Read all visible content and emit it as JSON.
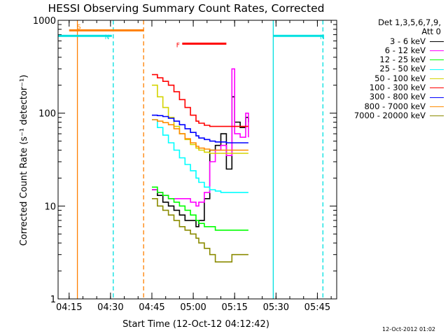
{
  "chart_data": {
    "type": "line",
    "title": "HESSI Observing Summary Count Rates, Corrected",
    "xlabel": "Start Time (12-Oct-12 04:12:42)",
    "ylabel": "Corrected Count Rate (s⁻¹ detector⁻¹)",
    "yscale": "log",
    "ylim": [
      1,
      1000
    ],
    "xlim": [
      "04:11:00",
      "05:52:00"
    ],
    "x_ticks": [
      "04:15",
      "04:30",
      "04:45",
      "05:00",
      "05:15",
      "05:30",
      "05:45"
    ],
    "y_ticks": [
      "1",
      "10",
      "100",
      "1000"
    ],
    "legend_header": [
      "Det 1,3,5,6,7,9,",
      "Att 0"
    ],
    "legend_position": "outside-right",
    "datestamp": "12-Oct-2012 01:02",
    "bars": [
      {
        "label": "S",
        "color": "#ff7f00",
        "level": 780,
        "start": "04:15:00",
        "end": "04:42:00"
      },
      {
        "label": "N",
        "color": "#00e0e0",
        "level": 680,
        "start": "04:11:00",
        "end": "04:30:30"
      },
      {
        "label": "N",
        "color": "#00e0e0",
        "level": 680,
        "start": "05:29:00",
        "end": "05:47:00"
      },
      {
        "label": "F",
        "color": "#ff0000",
        "level": 560,
        "start": "04:56:00",
        "end": "05:12:00"
      }
    ],
    "vlines": [
      {
        "t": "04:18:00",
        "color": "#ff7f00",
        "style": "solid"
      },
      {
        "t": "04:42:00",
        "color": "#ff7f00",
        "style": "dashed"
      },
      {
        "t": "04:31:00",
        "color": "#00e0e0",
        "style": "dashed"
      },
      {
        "t": "05:29:00",
        "color": "#00e0e0",
        "style": "solid"
      },
      {
        "t": "05:47:00",
        "color": "#00e0e0",
        "style": "dashed"
      }
    ],
    "series": [
      {
        "name": "3 - 6 keV",
        "color": "#000000",
        "x": [
          "04:45",
          "04:47",
          "04:49",
          "04:51",
          "04:53",
          "04:55",
          "04:57",
          "04:59",
          "05:01",
          "05:02",
          "05:04",
          "05:06",
          "05:08",
          "05:10",
          "05:12",
          "05:14",
          "05:15",
          "05:17",
          "05:19",
          "05:20"
        ],
        "y": [
          15,
          13,
          11,
          10,
          9,
          8,
          7,
          7,
          6,
          7,
          12,
          40,
          45,
          60,
          25,
          150,
          80,
          70,
          90,
          80
        ]
      },
      {
        "name": "6 - 12 keV",
        "color": "#ff00ff",
        "x": [
          "04:45",
          "04:47",
          "04:49",
          "04:51",
          "04:53",
          "04:55",
          "04:57",
          "04:59",
          "05:01",
          "05:02",
          "05:04",
          "05:06",
          "05:08",
          "05:10",
          "05:12",
          "05:14",
          "05:15",
          "05:17",
          "05:19",
          "05:20"
        ],
        "y": [
          15,
          14,
          13,
          12,
          12,
          12,
          12,
          11,
          10,
          11,
          14,
          30,
          40,
          45,
          35,
          300,
          60,
          55,
          100,
          55
        ]
      },
      {
        "name": "12 - 25 keV",
        "color": "#00ff00",
        "x": [
          "04:45",
          "04:47",
          "04:49",
          "04:51",
          "04:53",
          "04:55",
          "04:57",
          "04:59",
          "05:01",
          "05:02",
          "05:04",
          "05:06",
          "05:08",
          "05:10",
          "05:12",
          "05:14",
          "05:16",
          "05:18",
          "05:20"
        ],
        "y": [
          16,
          14,
          13,
          12,
          11,
          10,
          9,
          8,
          7,
          6.5,
          6,
          6,
          5.5,
          5.5,
          5.5,
          5.5,
          5.5,
          5.5,
          5.5
        ]
      },
      {
        "name": "25 - 50 keV",
        "color": "#00ffff",
        "x": [
          "04:45",
          "04:47",
          "04:49",
          "04:51",
          "04:53",
          "04:55",
          "04:57",
          "04:59",
          "05:01",
          "05:02",
          "05:04",
          "05:06",
          "05:08",
          "05:10",
          "05:12",
          "05:14",
          "05:16",
          "05:18",
          "05:20"
        ],
        "y": [
          85,
          70,
          58,
          48,
          40,
          33,
          28,
          24,
          20,
          18,
          16,
          15,
          14.5,
          14,
          14,
          14,
          14,
          14,
          14
        ]
      },
      {
        "name": "50 - 100 keV",
        "color": "#d4d400",
        "x": [
          "04:45",
          "04:47",
          "04:49",
          "04:51",
          "04:53",
          "04:55",
          "04:57",
          "04:59",
          "05:01",
          "05:02",
          "05:04",
          "05:06",
          "05:08",
          "05:10",
          "05:12",
          "05:14",
          "05:16",
          "05:18",
          "05:20"
        ],
        "y": [
          200,
          150,
          115,
          90,
          72,
          60,
          52,
          46,
          42,
          40,
          38,
          37,
          37,
          37,
          37,
          37,
          37,
          37,
          37
        ]
      },
      {
        "name": "100 - 300 keV",
        "color": "#ff0000",
        "x": [
          "04:45",
          "04:47",
          "04:49",
          "04:51",
          "04:53",
          "04:55",
          "04:57",
          "04:59",
          "05:01",
          "05:02",
          "05:04",
          "05:06",
          "05:08",
          "05:10",
          "05:12",
          "05:14",
          "05:16",
          "05:18",
          "05:20"
        ],
        "y": [
          260,
          240,
          220,
          200,
          170,
          140,
          115,
          95,
          82,
          78,
          74,
          72,
          72,
          72,
          72,
          72,
          72,
          72,
          72
        ]
      },
      {
        "name": "300 - 800 keV",
        "color": "#0000ff",
        "x": [
          "04:45",
          "04:47",
          "04:49",
          "04:51",
          "04:53",
          "04:55",
          "04:57",
          "04:59",
          "05:01",
          "05:02",
          "05:04",
          "05:06",
          "05:08",
          "05:10",
          "05:12",
          "05:14",
          "05:16",
          "05:18",
          "05:20"
        ],
        "y": [
          95,
          94,
          92,
          88,
          82,
          75,
          68,
          62,
          57,
          54,
          52,
          50,
          49,
          49,
          48,
          48,
          48,
          48,
          48
        ]
      },
      {
        "name": "800 - 7000 keV",
        "color": "#ff8c00",
        "x": [
          "04:45",
          "04:47",
          "04:49",
          "04:51",
          "04:53",
          "04:55",
          "04:57",
          "04:59",
          "05:01",
          "05:02",
          "05:04",
          "05:06",
          "05:08",
          "05:10",
          "05:12",
          "05:14",
          "05:16",
          "05:18",
          "05:20"
        ],
        "y": [
          85,
          82,
          79,
          75,
          68,
          60,
          53,
          48,
          44,
          42,
          41,
          40,
          40,
          40,
          40,
          40,
          40,
          40,
          40
        ]
      },
      {
        "name": "7000 - 20000 keV",
        "color": "#8b8b00",
        "x": [
          "04:45",
          "04:47",
          "04:49",
          "04:51",
          "04:53",
          "04:55",
          "04:57",
          "04:59",
          "05:01",
          "05:02",
          "05:04",
          "05:06",
          "05:08",
          "05:10",
          "05:12",
          "05:14",
          "05:16",
          "05:18",
          "05:20"
        ],
        "y": [
          12,
          10,
          9,
          8,
          7,
          6,
          5.5,
          5,
          4.5,
          4,
          3.5,
          3,
          2.5,
          2.5,
          2.5,
          3,
          3,
          3,
          3
        ]
      }
    ]
  }
}
